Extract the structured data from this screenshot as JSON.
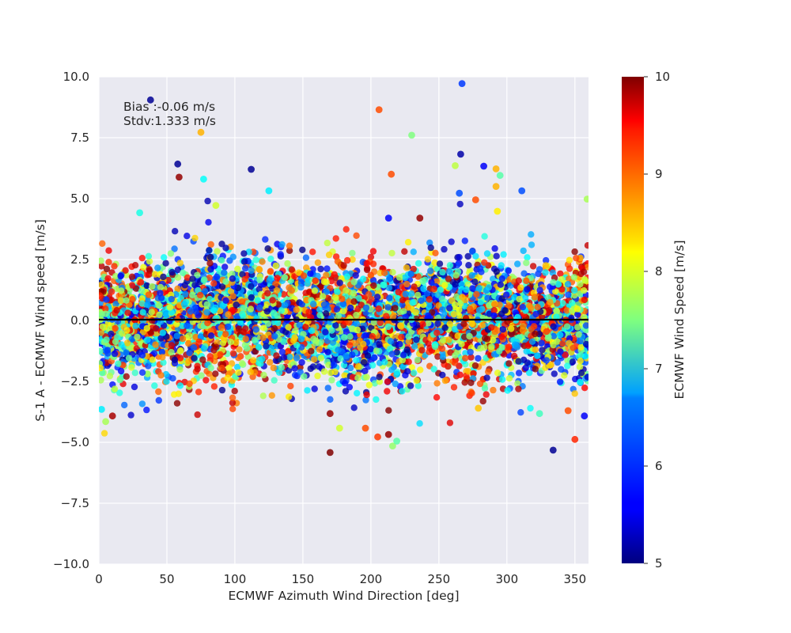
{
  "chart_data": {
    "type": "scatter",
    "title": "",
    "xlabel": "ECMWF Azimuth Wind Direction [deg]",
    "ylabel": "S-1 A - ECMWF Wind speed [m/s]",
    "xlim": [
      0,
      360
    ],
    "ylim": [
      -10,
      10
    ],
    "x_ticks": [
      "0",
      "50",
      "100",
      "150",
      "200",
      "250",
      "300",
      "350"
    ],
    "y_ticks": [
      "10.0",
      "7.5",
      "5.0",
      "2.5",
      "0.0",
      "−2.5",
      "−5.0",
      "−7.5",
      "−10.0"
    ],
    "grid": true,
    "background": "#e9e9f1",
    "reference_line_y": 0,
    "annotation_lines": [
      "Bias :-0.06 m/s",
      "Stdv:1.333 m/s"
    ],
    "colorbar": {
      "label": "ECMWF Wind Speed [m/s]",
      "range": [
        5,
        10
      ],
      "ticks": [
        "5",
        "6",
        "7",
        "8",
        "9",
        "10"
      ],
      "colormap": "jet"
    },
    "color_variable": "ECMWF Wind Speed [m/s]",
    "points_note_count": 5000,
    "outliers": [
      {
        "x": 38,
        "y": 9.05,
        "c": 5.1
      },
      {
        "x": 267,
        "y": 9.72,
        "c": 5.9
      },
      {
        "x": 206,
        "y": 8.65,
        "c": 9.0
      },
      {
        "x": 75,
        "y": 7.72,
        "c": 8.5
      },
      {
        "x": 230,
        "y": 7.6,
        "c": 7.5
      },
      {
        "x": 58,
        "y": 6.42,
        "c": 5.1
      },
      {
        "x": 59,
        "y": 5.88,
        "c": 9.9
      },
      {
        "x": 112,
        "y": 6.2,
        "c": 5.1
      },
      {
        "x": 266,
        "y": 6.82,
        "c": 5.2
      },
      {
        "x": 262,
        "y": 6.35,
        "c": 7.8
      },
      {
        "x": 283,
        "y": 6.33,
        "c": 5.6
      },
      {
        "x": 292,
        "y": 6.22,
        "c": 8.5
      },
      {
        "x": 295,
        "y": 5.95,
        "c": 7.3
      },
      {
        "x": 215,
        "y": 6.0,
        "c": 9.0
      },
      {
        "x": 77,
        "y": 5.8,
        "c": 6.9
      },
      {
        "x": 125,
        "y": 5.32,
        "c": 6.8
      },
      {
        "x": 265,
        "y": 5.22,
        "c": 6.0
      },
      {
        "x": 311,
        "y": 5.32,
        "c": 6.0
      },
      {
        "x": 292,
        "y": 5.5,
        "c": 8.5
      },
      {
        "x": 277,
        "y": 4.95,
        "c": 9.0
      },
      {
        "x": 359,
        "y": 4.98,
        "c": 7.7
      },
      {
        "x": 30,
        "y": 4.42,
        "c": 7.0
      },
      {
        "x": 86,
        "y": 4.72,
        "c": 7.9
      },
      {
        "x": 213,
        "y": 4.2,
        "c": 5.6
      },
      {
        "x": 236,
        "y": 4.2,
        "c": 9.9
      },
      {
        "x": 293,
        "y": 4.48,
        "c": 8.2
      },
      {
        "x": 170,
        "y": -5.42,
        "c": 10.0
      },
      {
        "x": 334,
        "y": -5.32,
        "c": 5.1
      },
      {
        "x": 216,
        "y": -5.15,
        "c": 7.6
      },
      {
        "x": 219,
        "y": -4.95,
        "c": 7.3
      },
      {
        "x": 350,
        "y": -4.88,
        "c": 9.2
      },
      {
        "x": 205,
        "y": -4.78,
        "c": 9.1
      },
      {
        "x": 213,
        "y": -4.68,
        "c": 9.9
      },
      {
        "x": 177,
        "y": -4.42,
        "c": 7.9
      },
      {
        "x": 196,
        "y": -4.42,
        "c": 9.0
      },
      {
        "x": 5,
        "y": -4.15,
        "c": 7.7
      },
      {
        "x": 10,
        "y": -3.92,
        "c": 9.8
      },
      {
        "x": 2,
        "y": -3.65,
        "c": 6.8
      },
      {
        "x": 357,
        "y": -3.92,
        "c": 5.6
      },
      {
        "x": 170,
        "y": -3.82,
        "c": 9.9
      },
      {
        "x": 324,
        "y": -3.82,
        "c": 7.2
      },
      {
        "x": 279,
        "y": -3.6,
        "c": 8.4
      },
      {
        "x": 345,
        "y": -3.7,
        "c": 9.0
      }
    ]
  }
}
